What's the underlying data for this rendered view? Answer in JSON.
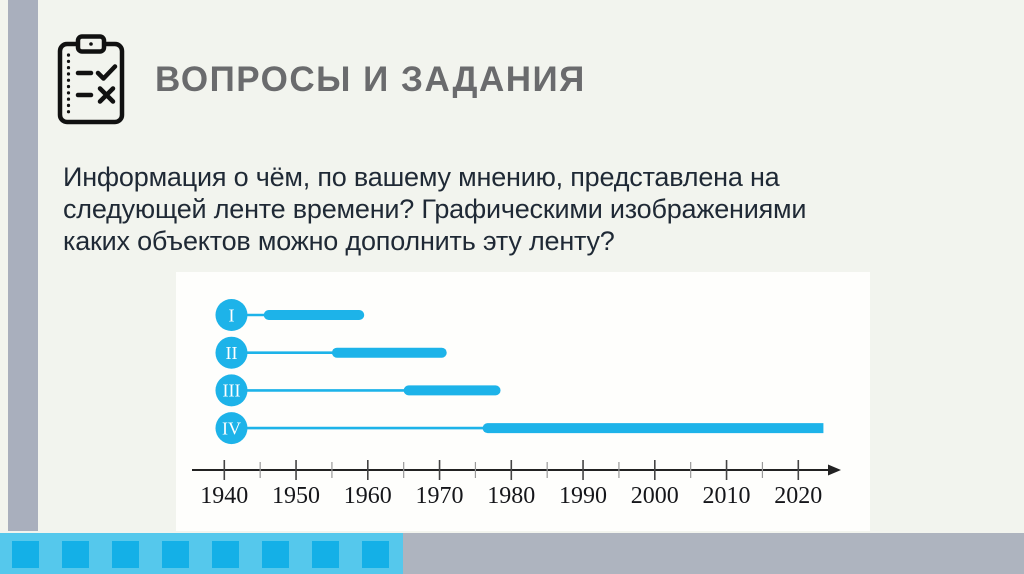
{
  "page": {
    "background": "#f2f4ee"
  },
  "header": {
    "title": "ВОПРОСЫ И ЗАДАНИЯ",
    "title_color": "#6a6b6d",
    "icon": "clipboard-tasks-icon"
  },
  "question": {
    "lines": [
      "Информация о чём, по вашему мнению, представлена на",
      "следующей ленте времени? Графическими изображениями",
      "каких объектов можно дополнить эту ленту?"
    ],
    "text_color": "#1f2935"
  },
  "chart_data": {
    "type": "timeline",
    "title": "",
    "unit": "year",
    "panel_background": "#fefefc",
    "bar_color": "#1db3e9",
    "axis": {
      "tick_start": 1940,
      "tick_end": 2020,
      "major_step": 10,
      "minor_step": 5,
      "tick_labels": [
        "1940",
        "1950",
        "1960",
        "1970",
        "1980",
        "1990",
        "2000",
        "2010",
        "2020"
      ],
      "arrow": true
    },
    "rows": [
      {
        "label": "I",
        "marker_year": 1941,
        "thick_from": 1945.5,
        "thick_to": 1959.5,
        "open_ended": false
      },
      {
        "label": "II",
        "marker_year": 1941,
        "thick_from": 1955,
        "thick_to": 1971,
        "open_ended": false
      },
      {
        "label": "III",
        "marker_year": 1941,
        "thick_from": 1965,
        "thick_to": 1978.5,
        "open_ended": false
      },
      {
        "label": "IV",
        "marker_year": 1941,
        "thick_from": 1976,
        "thick_to": 2023.5,
        "open_ended": true
      }
    ]
  },
  "footer": {
    "square_count": 8,
    "squares_color": "#14b0e7",
    "strip_color": "#55c8ec",
    "gray_color": "#aeb4bf"
  },
  "decor": {
    "left_strip_color": "#a9afbd"
  }
}
